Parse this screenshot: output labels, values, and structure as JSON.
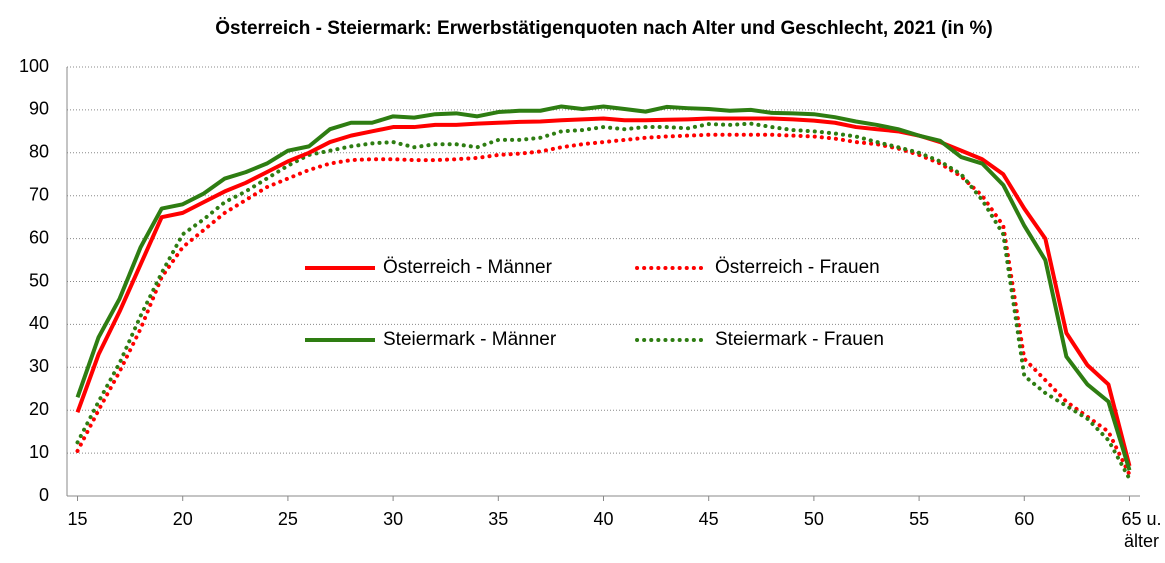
{
  "chart_data": {
    "type": "line",
    "title": "Österreich - Steiermark: Erwerbstätigenquoten nach Alter und Geschlecht, 2021 (in %)",
    "categories": [
      "15",
      null,
      null,
      null,
      null,
      "20",
      null,
      null,
      null,
      null,
      "25",
      null,
      null,
      null,
      null,
      "30",
      null,
      null,
      null,
      null,
      "35",
      null,
      null,
      null,
      null,
      "40",
      null,
      null,
      null,
      null,
      "45",
      null,
      null,
      null,
      null,
      "50",
      null,
      null,
      null,
      null,
      "55",
      null,
      null,
      null,
      null,
      "60",
      null,
      null,
      null,
      null,
      "65 u. älter"
    ],
    "ylim": [
      0,
      100
    ],
    "yticks": [
      0,
      10,
      20,
      30,
      40,
      50,
      60,
      70,
      80,
      90,
      100
    ],
    "grid": true,
    "series": [
      {
        "name": "Österreich - Männer",
        "color": "#ff0000",
        "style": "solid",
        "values": [
          19.5,
          33,
          43,
          54,
          65,
          66,
          68.5,
          71,
          73,
          75.5,
          78,
          80,
          82.5,
          84,
          85,
          86,
          86,
          86.5,
          86.5,
          86.8,
          87,
          87.2,
          87.3,
          87.6,
          87.8,
          88,
          87.6,
          87.6,
          87.7,
          87.8,
          88,
          88,
          88,
          88,
          87.8,
          87.5,
          87,
          86,
          85.5,
          85,
          84,
          82.5,
          80.5,
          78.5,
          75,
          67,
          60,
          38,
          30.5,
          26,
          7
        ]
      },
      {
        "name": "Österreich - Frauen",
        "color": "#ff0000",
        "style": "dotted",
        "values": [
          10.5,
          20,
          29,
          39,
          51,
          58,
          62,
          66,
          69,
          72,
          74,
          76,
          77.5,
          78.3,
          78.5,
          78.5,
          78.3,
          78.3,
          78.5,
          78.8,
          79.5,
          79.8,
          80.3,
          81.3,
          82,
          82.5,
          83,
          83.5,
          83.8,
          84,
          84.2,
          84.2,
          84.2,
          84.2,
          84,
          83.8,
          83.3,
          82.5,
          82,
          81,
          79.5,
          77.5,
          74.5,
          70,
          63,
          32,
          27,
          22,
          18.5,
          15,
          5
        ]
      },
      {
        "name": "Steiermark - Männer",
        "color": "#2e7d12",
        "style": "solid",
        "values": [
          23,
          37,
          46,
          58,
          67,
          68,
          70.5,
          74,
          75.5,
          77.5,
          80.5,
          81.5,
          85.5,
          87,
          87,
          88.5,
          88.2,
          89,
          89.2,
          88.5,
          89.5,
          89.8,
          89.8,
          90.8,
          90.2,
          90.8,
          90.2,
          89.6,
          90.7,
          90.4,
          90.2,
          89.8,
          90,
          89.3,
          89.2,
          89,
          88.3,
          87.3,
          86.5,
          85.5,
          84,
          82.8,
          79,
          77.5,
          72.5,
          63,
          55,
          32.5,
          26,
          22,
          6
        ]
      },
      {
        "name": "Steiermark - Frauen",
        "color": "#2e7d12",
        "style": "dotted",
        "values": [
          12.5,
          22,
          31,
          42,
          52,
          61,
          64.5,
          68.5,
          71,
          74,
          77,
          79.5,
          80.5,
          81.5,
          82.2,
          82.5,
          81.3,
          82,
          82,
          81.3,
          83,
          83,
          83.5,
          85,
          85.3,
          86,
          85.5,
          86,
          86,
          85.7,
          86.7,
          86.5,
          86.8,
          86,
          85.3,
          85,
          84.5,
          83.8,
          82.5,
          81.3,
          80,
          78,
          75,
          69,
          61,
          28,
          24,
          21,
          18,
          13,
          4
        ]
      }
    ]
  }
}
